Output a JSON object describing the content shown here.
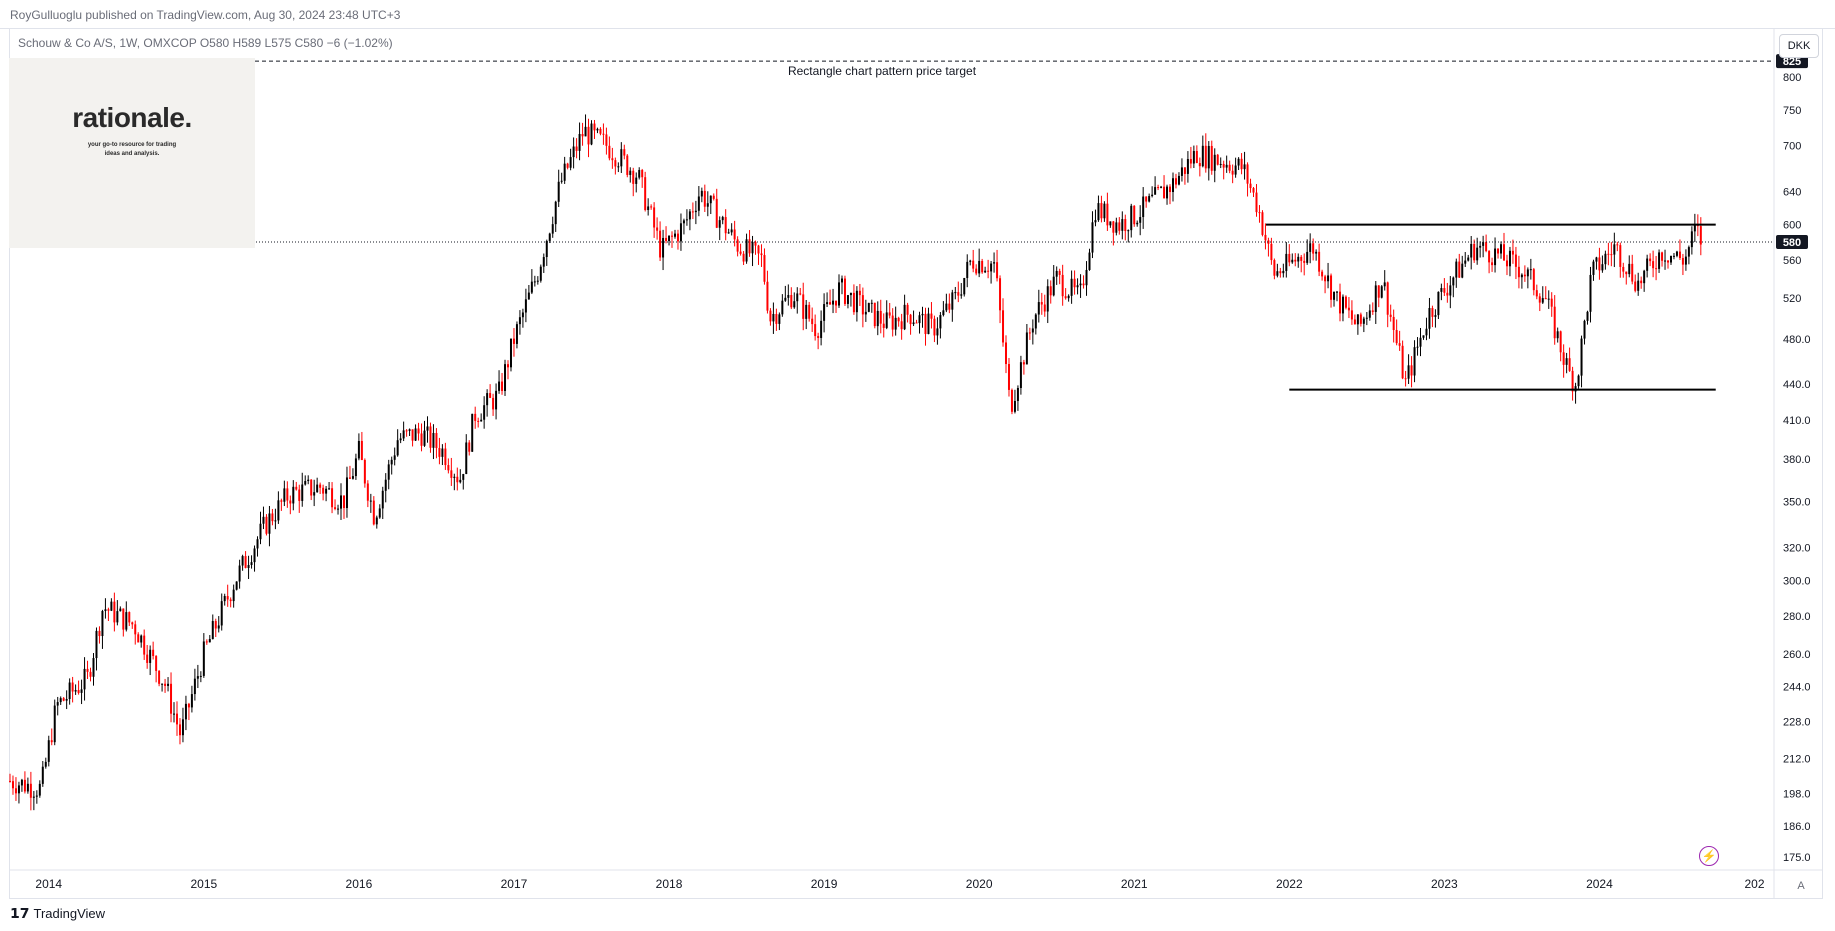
{
  "header": {
    "published": "RoyGulluoglu published on TradingView.com, Aug 30, 2024 23:48 UTC+3",
    "symbol_line": "Schouw & Co A/S, 1W, OMXCOP  O580  H589  L575  C580  −6 (−1.02%)"
  },
  "logo": {
    "title": "rationale.",
    "tagline_1": "your go-to resource for trading",
    "tagline_2": "ideas and analysis."
  },
  "currency": "DKK",
  "footer": {
    "brand": "TradingView",
    "brand_icon": "tradingview-logo-icon"
  },
  "controls": {
    "auto_scale": "A",
    "flash_icon": "lightning-icon"
  },
  "colors": {
    "up": "#000000",
    "down": "#ff0000",
    "line": "#000000",
    "grid": "#e0e3eb"
  },
  "chart_data": {
    "type": "candlestick",
    "title": "",
    "xlabel": "",
    "ylabel": "",
    "log_scale": true,
    "ylim": [
      170,
      830
    ],
    "xlim": [
      2013.75,
      2025.1
    ],
    "grid": false,
    "price_ticks": [
      800,
      750,
      700,
      640,
      600,
      560,
      520,
      480.0,
      440.0,
      410.0,
      380.0,
      350.0,
      320.0,
      300.0,
      280.0,
      260.0,
      244.0,
      228.0,
      212.0,
      198.0,
      186.0,
      175.0
    ],
    "year_ticks": [
      {
        "label": "2014",
        "x": 2014.0
      },
      {
        "label": "2015",
        "x": 2015.0
      },
      {
        "label": "2016",
        "x": 2016.0
      },
      {
        "label": "2017",
        "x": 2017.0
      },
      {
        "label": "2018",
        "x": 2018.0
      },
      {
        "label": "2019",
        "x": 2019.0
      },
      {
        "label": "2020",
        "x": 2020.0
      },
      {
        "label": "2021",
        "x": 2021.0
      },
      {
        "label": "2022",
        "x": 2022.0
      },
      {
        "label": "2023",
        "x": 2023.0
      },
      {
        "label": "2024",
        "x": 2024.0
      },
      {
        "label": "202",
        "x": 2025.0
      }
    ],
    "last_price": {
      "value": 580,
      "label": "580"
    },
    "target": {
      "value": 825,
      "label": "825",
      "annotation": "Rectangle chart pattern price target"
    },
    "resistance": {
      "value": 600,
      "x_start": 2021.85,
      "x_end": 2024.75
    },
    "support": {
      "value": 435,
      "x_start": 2022.0,
      "x_end": 2024.75
    },
    "price_path": [
      [
        2013.75,
        203
      ],
      [
        2013.95,
        200
      ],
      [
        2014.05,
        235
      ],
      [
        2014.25,
        248
      ],
      [
        2014.35,
        285
      ],
      [
        2014.55,
        275
      ],
      [
        2014.75,
        245
      ],
      [
        2014.85,
        222
      ],
      [
        2015.0,
        260
      ],
      [
        2015.2,
        300
      ],
      [
        2015.4,
        335
      ],
      [
        2015.55,
        355
      ],
      [
        2015.75,
        360
      ],
      [
        2015.9,
        350
      ],
      [
        2016.0,
        385
      ],
      [
        2016.1,
        340
      ],
      [
        2016.25,
        395
      ],
      [
        2016.4,
        400
      ],
      [
        2016.55,
        385
      ],
      [
        2016.65,
        365
      ],
      [
        2016.75,
        415
      ],
      [
        2016.9,
        430
      ],
      [
        2017.0,
        480
      ],
      [
        2017.15,
        545
      ],
      [
        2017.3,
        650
      ],
      [
        2017.45,
        720
      ],
      [
        2017.6,
        700
      ],
      [
        2017.8,
        660
      ],
      [
        2017.95,
        570
      ],
      [
        2018.1,
        600
      ],
      [
        2018.2,
        640
      ],
      [
        2018.45,
        575
      ],
      [
        2018.6,
        560
      ],
      [
        2018.65,
        500
      ],
      [
        2018.8,
        525
      ],
      [
        2018.95,
        490
      ],
      [
        2019.1,
        530
      ],
      [
        2019.25,
        510
      ],
      [
        2019.4,
        495
      ],
      [
        2019.55,
        505
      ],
      [
        2019.7,
        490
      ],
      [
        2019.85,
        520
      ],
      [
        2019.95,
        560
      ],
      [
        2020.1,
        555
      ],
      [
        2020.2,
        420
      ],
      [
        2020.35,
        500
      ],
      [
        2020.5,
        540
      ],
      [
        2020.65,
        520
      ],
      [
        2020.75,
        620
      ],
      [
        2020.9,
        600
      ],
      [
        2021.0,
        610
      ],
      [
        2021.1,
        625
      ],
      [
        2021.25,
        650
      ],
      [
        2021.4,
        690
      ],
      [
        2021.55,
        680
      ],
      [
        2021.7,
        670
      ],
      [
        2021.8,
        620
      ],
      [
        2021.9,
        545
      ],
      [
        2022.0,
        555
      ],
      [
        2022.15,
        575
      ],
      [
        2022.3,
        520
      ],
      [
        2022.45,
        490
      ],
      [
        2022.6,
        540
      ],
      [
        2022.75,
        440
      ],
      [
        2022.9,
        505
      ],
      [
        2023.05,
        540
      ],
      [
        2023.2,
        575
      ],
      [
        2023.35,
        565
      ],
      [
        2023.5,
        550
      ],
      [
        2023.65,
        520
      ],
      [
        2023.8,
        450
      ],
      [
        2023.85,
        440
      ],
      [
        2023.95,
        545
      ],
      [
        2024.1,
        575
      ],
      [
        2024.25,
        535
      ],
      [
        2024.4,
        570
      ],
      [
        2024.55,
        560
      ],
      [
        2024.62,
        595
      ],
      [
        2024.66,
        580
      ]
    ]
  }
}
